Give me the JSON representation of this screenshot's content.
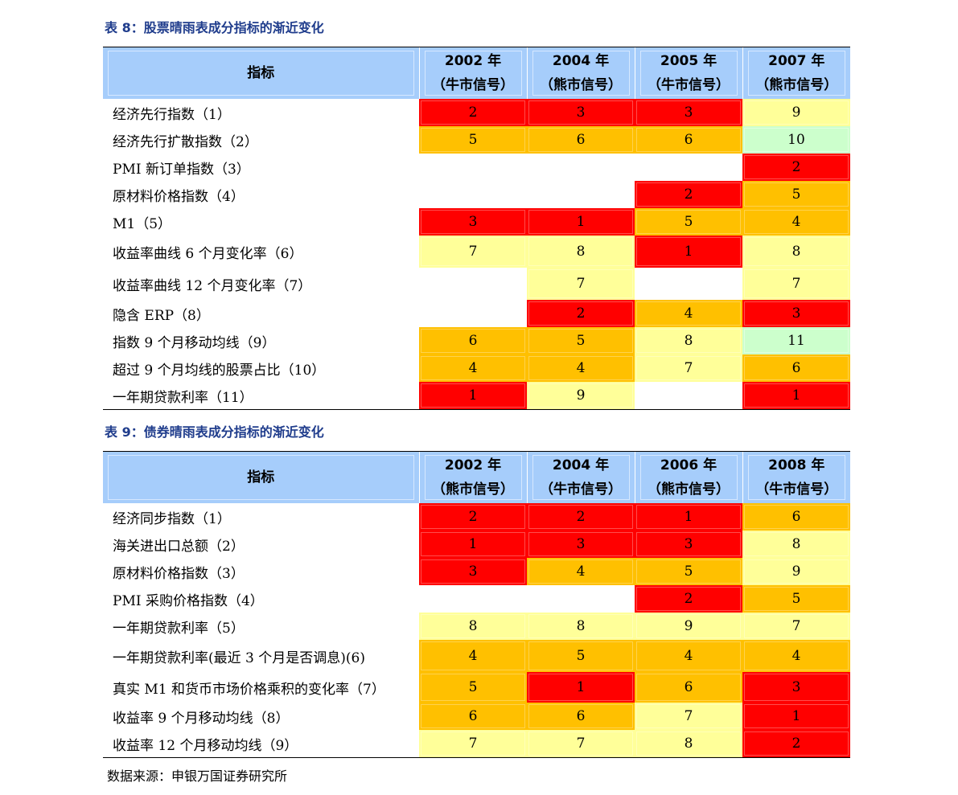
{
  "colors": {
    "red": "#ff0000",
    "orange": "#ffc000",
    "yellow": "#ffff99",
    "green": "#ccffcc",
    "header": "#a6cdfb",
    "caption": "#1f3c8c"
  },
  "table8": {
    "caption": "表 8：股票晴雨表成分指标的渐近变化",
    "header": {
      "label": "指标",
      "cols": [
        {
          "year": "2002 年",
          "signal": "（牛市信号）"
        },
        {
          "year": "2004 年",
          "signal": "（熊市信号）"
        },
        {
          "year": "2005 年",
          "signal": "（牛市信号）"
        },
        {
          "year": "2007 年",
          "signal": "（熊市信号）"
        }
      ]
    },
    "rows": [
      {
        "label": "经济先行指数（1）",
        "values": [
          "2",
          "3",
          "3",
          "9"
        ],
        "colors": [
          "r",
          "r",
          "r",
          "y"
        ]
      },
      {
        "label": "经济先行扩散指数（2）",
        "values": [
          "5",
          "6",
          "6",
          "10"
        ],
        "colors": [
          "o",
          "o",
          "o",
          "g"
        ]
      },
      {
        "label": "PMI 新订单指数（3）",
        "values": [
          "",
          "",
          "",
          "2"
        ],
        "colors": [
          "w",
          "w",
          "w",
          "r"
        ]
      },
      {
        "label": "原材料价格指数（4）",
        "values": [
          "",
          "",
          "2",
          "5"
        ],
        "colors": [
          "w",
          "w",
          "r",
          "o"
        ]
      },
      {
        "label": "M1（5）",
        "values": [
          "3",
          "1",
          "5",
          "4"
        ],
        "colors": [
          "r",
          "r",
          "o",
          "o"
        ]
      },
      {
        "label": "收益率曲线 6 个月变化率（6）",
        "values": [
          "7",
          "8",
          "1",
          "8"
        ],
        "colors": [
          "y",
          "y",
          "r",
          "y"
        ]
      },
      {
        "label": "收益率曲线 12 个月变化率（7）",
        "values": [
          "",
          "7",
          "",
          "7"
        ],
        "colors": [
          "w",
          "y",
          "w",
          "y"
        ]
      },
      {
        "label": "隐含 ERP（8）",
        "values": [
          "",
          "2",
          "4",
          "3"
        ],
        "colors": [
          "w",
          "r",
          "o",
          "r"
        ]
      },
      {
        "label": "指数 9 个月移动均线（9）",
        "values": [
          "6",
          "5",
          "8",
          "11"
        ],
        "colors": [
          "o",
          "o",
          "y",
          "g"
        ]
      },
      {
        "label": "超过 9 个月均线的股票占比（10）",
        "values": [
          "4",
          "4",
          "7",
          "6"
        ],
        "colors": [
          "o",
          "o",
          "y",
          "o"
        ]
      },
      {
        "label": "一年期贷款利率（11）",
        "values": [
          "1",
          "9",
          "",
          "1"
        ],
        "colors": [
          "r",
          "y",
          "w",
          "r"
        ]
      }
    ]
  },
  "table9": {
    "caption": "表 9：债券晴雨表成分指标的渐近变化",
    "header": {
      "label": "指标",
      "cols": [
        {
          "year": "2002 年",
          "signal": "（熊市信号）"
        },
        {
          "year": "2004 年",
          "signal": "（牛市信号）"
        },
        {
          "year": "2006 年",
          "signal": "（熊市信号）"
        },
        {
          "year": "2008 年",
          "signal": "（牛市信号）"
        }
      ]
    },
    "rows": [
      {
        "label": "经济同步指数（1）",
        "values": [
          "2",
          "2",
          "1",
          "6"
        ],
        "colors": [
          "r",
          "r",
          "r",
          "o"
        ]
      },
      {
        "label": "海关进出口总额（2）",
        "values": [
          "1",
          "3",
          "3",
          "8"
        ],
        "colors": [
          "r",
          "r",
          "r",
          "y"
        ]
      },
      {
        "label": "原材料价格指数（3）",
        "values": [
          "3",
          "4",
          "5",
          "9"
        ],
        "colors": [
          "r",
          "o",
          "o",
          "y"
        ]
      },
      {
        "label": "PMI 采购价格指数（4）",
        "values": [
          "",
          "",
          "2",
          "5"
        ],
        "colors": [
          "w",
          "w",
          "r",
          "o"
        ]
      },
      {
        "label": "一年期贷款利率（5）",
        "values": [
          "8",
          "8",
          "9",
          "7"
        ],
        "colors": [
          "y",
          "y",
          "y",
          "y"
        ]
      },
      {
        "label": "一年期贷款利率(最近 3 个月是否调息)(6)",
        "values": [
          "4",
          "5",
          "4",
          "4"
        ],
        "colors": [
          "o",
          "o",
          "o",
          "o"
        ]
      },
      {
        "label": "真实 M1 和货币市场价格乘积的变化率（7）",
        "values": [
          "5",
          "1",
          "6",
          "3"
        ],
        "colors": [
          "o",
          "r",
          "o",
          "r"
        ]
      },
      {
        "label": "收益率 9 个月移动均线（8）",
        "values": [
          "6",
          "6",
          "7",
          "1"
        ],
        "colors": [
          "o",
          "o",
          "y",
          "r"
        ]
      },
      {
        "label": "收益率 12 个月移动均线（9）",
        "values": [
          "7",
          "7",
          "8",
          "2"
        ],
        "colors": [
          "y",
          "y",
          "y",
          "r"
        ]
      }
    ]
  },
  "source": "数据来源：申银万国证券研究所"
}
